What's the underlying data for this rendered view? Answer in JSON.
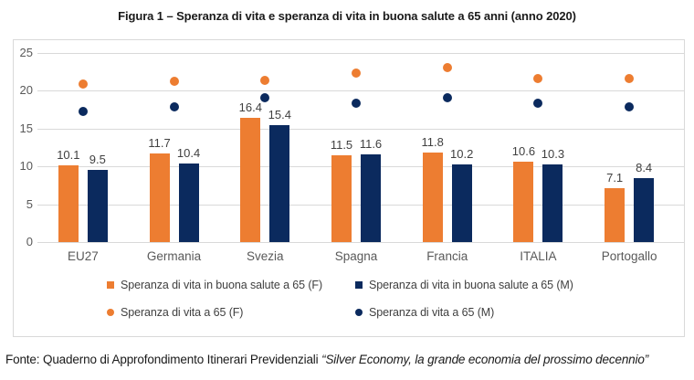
{
  "title": "Figura 1 – Speranza di vita e speranza di vita in buona salute a 65 anni (anno 2020)",
  "footer": {
    "prefix": "Fonte: Quaderno di Approfondimento Itinerari Previdenziali ",
    "quote": "“Silver Economy, la grande economia del prossimo decennio”"
  },
  "colors": {
    "orange": "#ED7D31",
    "navy": "#0B2A5E",
    "grid": "#D9D9D9",
    "axis_text": "#595959",
    "label_text": "#404040"
  },
  "chart_data": {
    "type": "bar",
    "title": "Figura 1 – Speranza di vita e speranza di vita in buona salute a 65 anni (anno 2020)",
    "categories": [
      "EU27",
      "Germania",
      "Svezia",
      "Spagna",
      "Francia",
      "ITALIA",
      "Portogallo"
    ],
    "series": [
      {
        "name": "Speranza di vita in buona salute a 65 (F)",
        "type": "bar",
        "color_key": "orange",
        "values": [
          10.1,
          11.7,
          16.4,
          11.5,
          11.8,
          10.6,
          7.1
        ],
        "labels_shown": true
      },
      {
        "name": "Speranza di vita in buona salute a 65 (M)",
        "type": "bar",
        "color_key": "navy",
        "values": [
          9.5,
          10.4,
          15.4,
          11.6,
          10.2,
          10.3,
          8.4
        ],
        "labels_shown": true
      },
      {
        "name": "Speranza di vita a 65 (F)",
        "type": "point",
        "color_key": "orange",
        "values": [
          20.9,
          21.2,
          21.4,
          22.3,
          23.1,
          21.6,
          21.6
        ],
        "labels_shown": false
      },
      {
        "name": "Speranza di vita a 65 (M)",
        "type": "point",
        "color_key": "navy",
        "values": [
          17.3,
          17.9,
          19.0,
          18.3,
          19.0,
          18.3,
          17.8
        ],
        "labels_shown": false
      }
    ],
    "y_ticks": [
      0,
      5,
      10,
      15,
      20,
      25
    ],
    "ylim": [
      0,
      25
    ],
    "xlabel": "",
    "ylabel": "",
    "grid": true,
    "legend_position": "bottom"
  }
}
